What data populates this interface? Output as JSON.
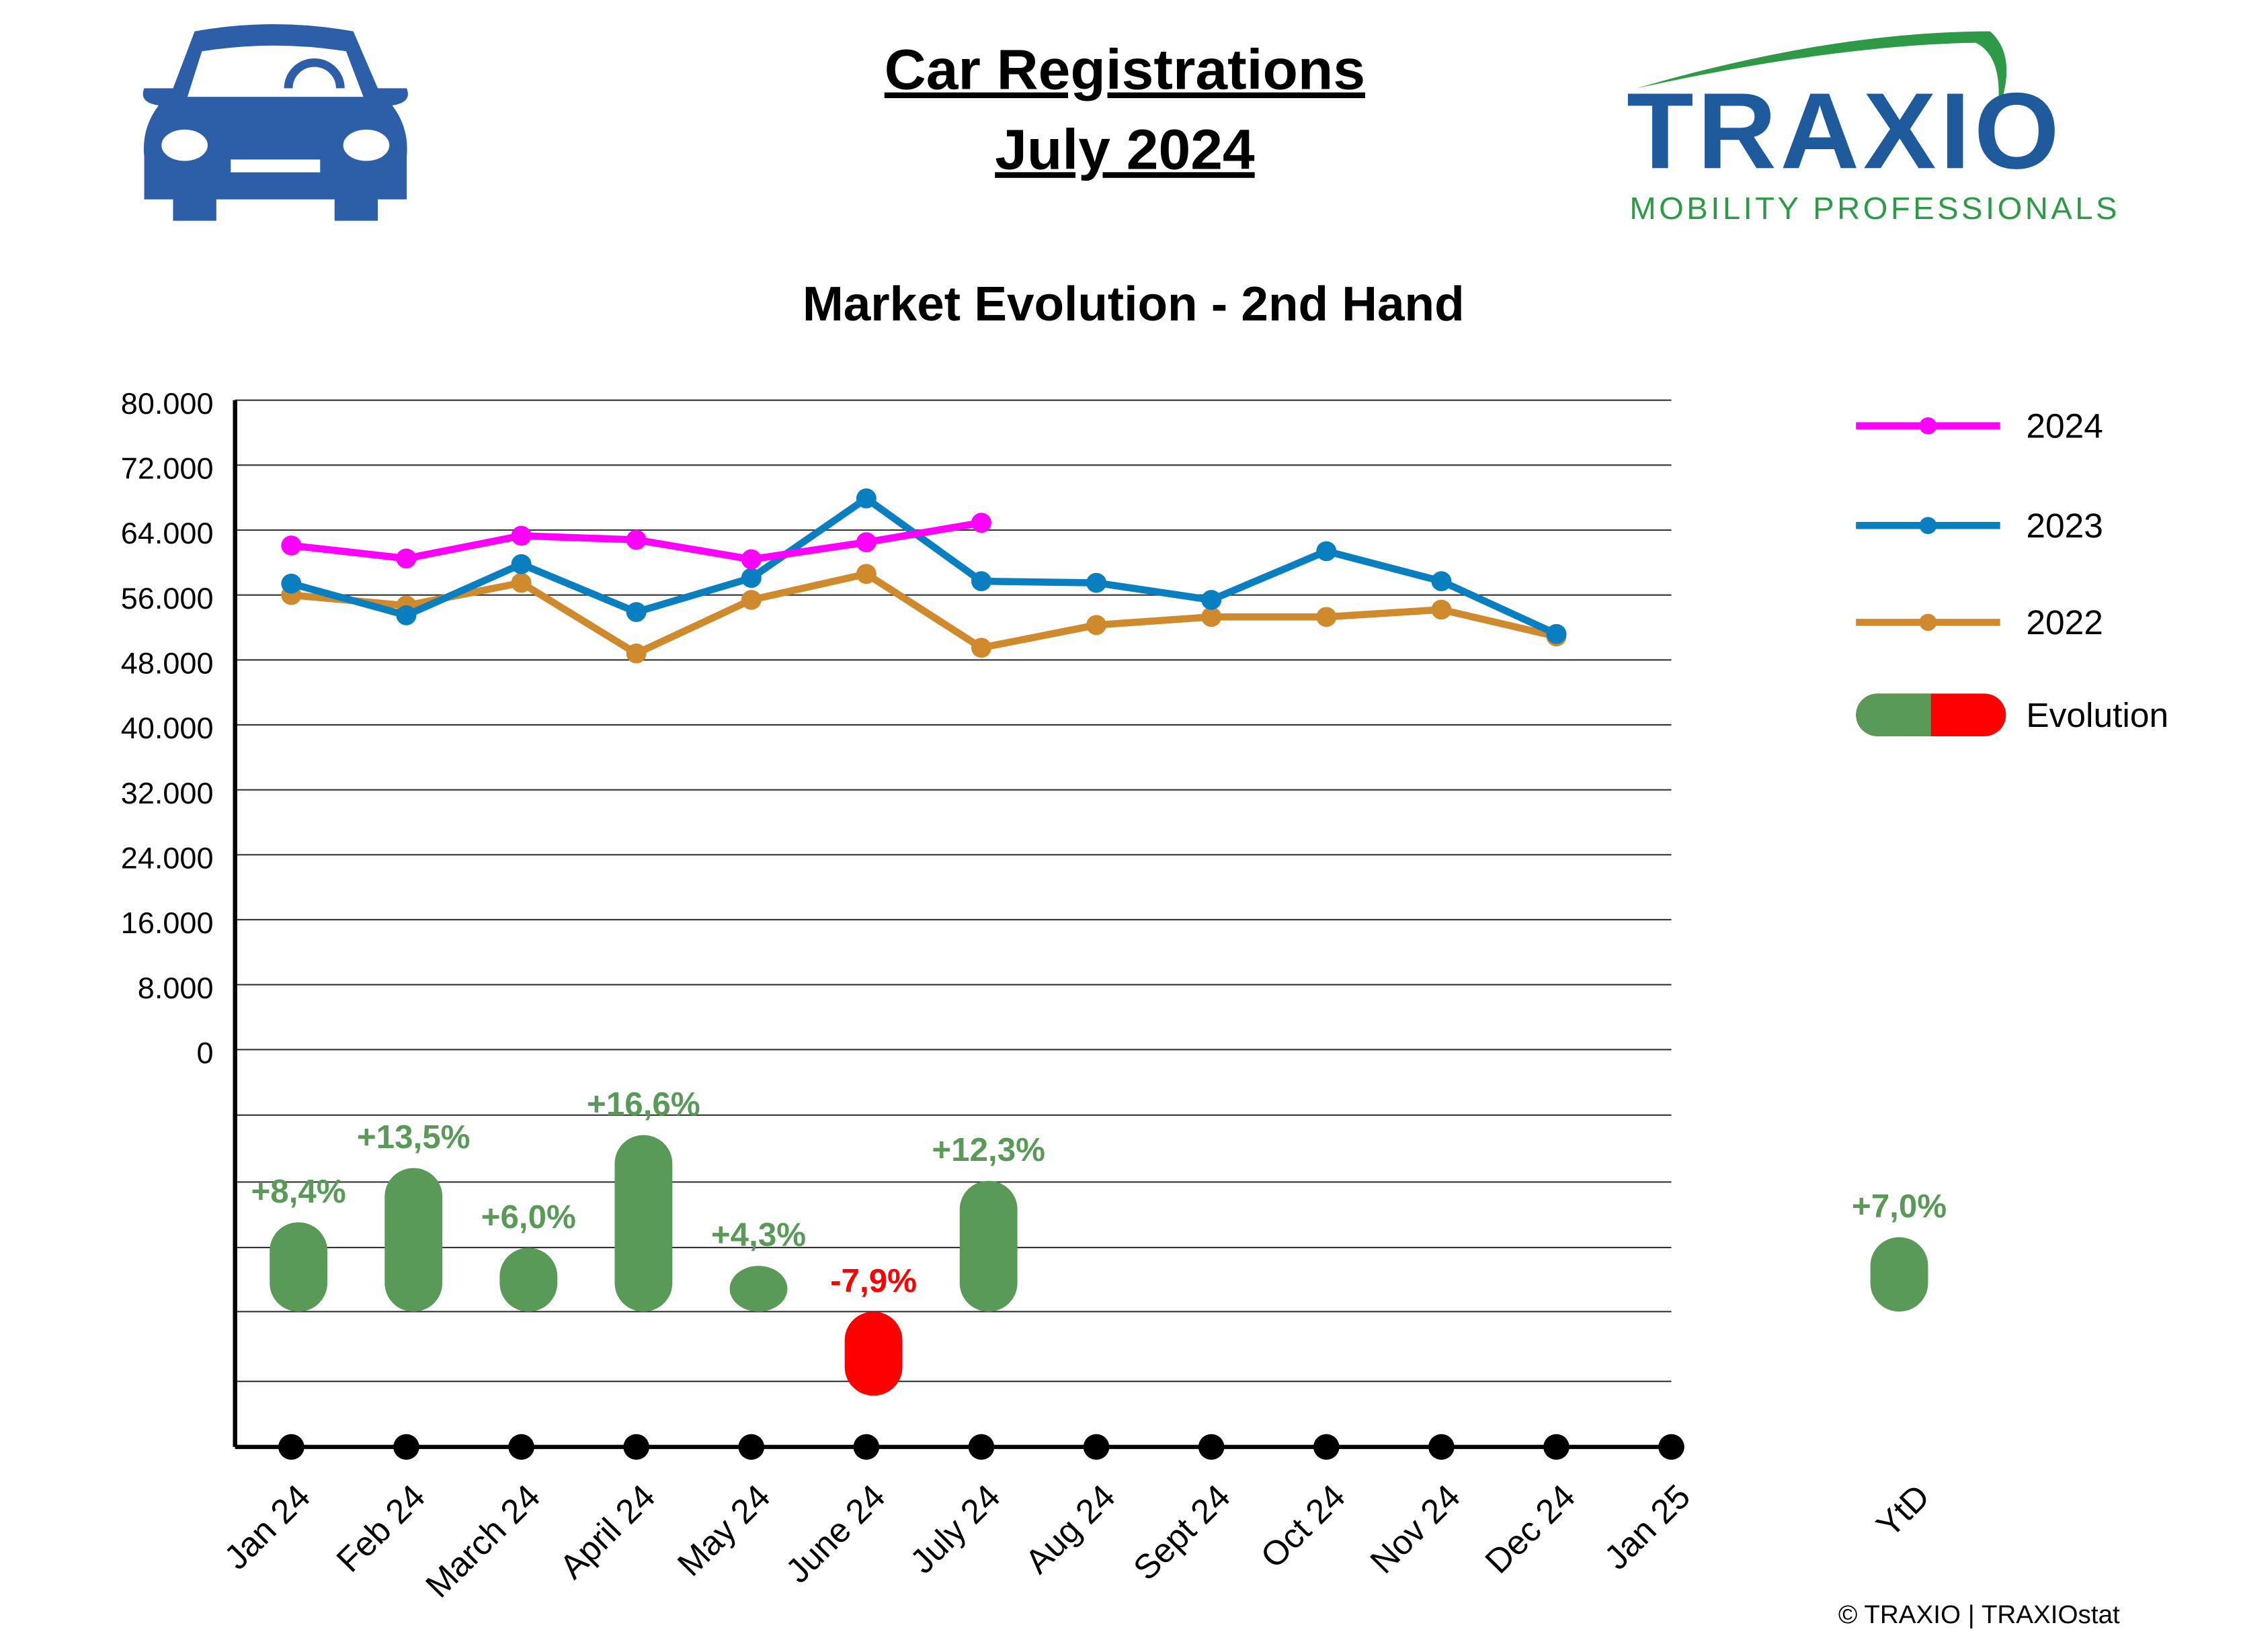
{
  "header": {
    "title_line1": "Car Registrations",
    "title_line2": "July 2024",
    "logo": "TRAXIO",
    "logo_tagline": "MOBILITY PROFESSIONALS"
  },
  "chart_data": {
    "type": "line",
    "title": "Market Evolution - 2nd Hand",
    "categories": [
      "Jan 24",
      "Feb 24",
      "March 24",
      "April 24",
      "May 24",
      "June 24",
      "July 24",
      "Aug 24",
      "Sept 24",
      "Oct 24",
      "Nov 24",
      "Dec 24",
      "Jan 25"
    ],
    "series": [
      {
        "name": "2024",
        "color": "#ff00ff",
        "values": [
          62100,
          60500,
          63300,
          62800,
          60400,
          62500,
          64900,
          null,
          null,
          null,
          null,
          null,
          null
        ]
      },
      {
        "name": "2023",
        "color": "#0a7fbf",
        "values": [
          57400,
          53500,
          59800,
          53900,
          58100,
          67900,
          57700,
          57500,
          55400,
          61400,
          57700,
          51200,
          null
        ]
      },
      {
        "name": "2022",
        "color": "#d08a2e",
        "values": [
          56000,
          54700,
          57500,
          48800,
          55400,
          58600,
          49500,
          52300,
          53300,
          53300,
          54200,
          50900,
          null
        ]
      }
    ],
    "evolution": {
      "name": "Evolution",
      "positive_color": "#5a9a58",
      "negative_color": "#ff0000",
      "values": [
        8.4,
        13.5,
        6.0,
        16.6,
        4.3,
        -7.9,
        12.3
      ],
      "value_labels": [
        "+8,4%",
        "+13,5%",
        "+6,0%",
        "+16,6%",
        "+4,3%",
        "-7,9%",
        "+12,3%"
      ],
      "ytd_label": "YtD",
      "ytd_value": 7.0,
      "ytd_value_label": "+7,0%"
    },
    "ylim": [
      0,
      80000
    ],
    "yticks": [
      0,
      {
        "value": 8000,
        "label": "8.000"
      },
      {
        "value": 16000,
        "label": "16.000"
      },
      {
        "value": 24000,
        "label": "24.000"
      },
      {
        "value": 32000,
        "label": "32.000"
      },
      {
        "value": 40000,
        "label": "40.000"
      },
      {
        "value": 48000,
        "label": "48.000"
      },
      {
        "value": 56000,
        "label": "56.000"
      },
      {
        "value": 64000,
        "label": "64.000"
      },
      {
        "value": 72000,
        "label": "72.000"
      },
      {
        "value": 80000,
        "label": "80.000"
      }
    ],
    "grid": true,
    "legend": "right"
  },
  "footer": {
    "credit": "© TRAXIO | TRAXIOstat"
  }
}
